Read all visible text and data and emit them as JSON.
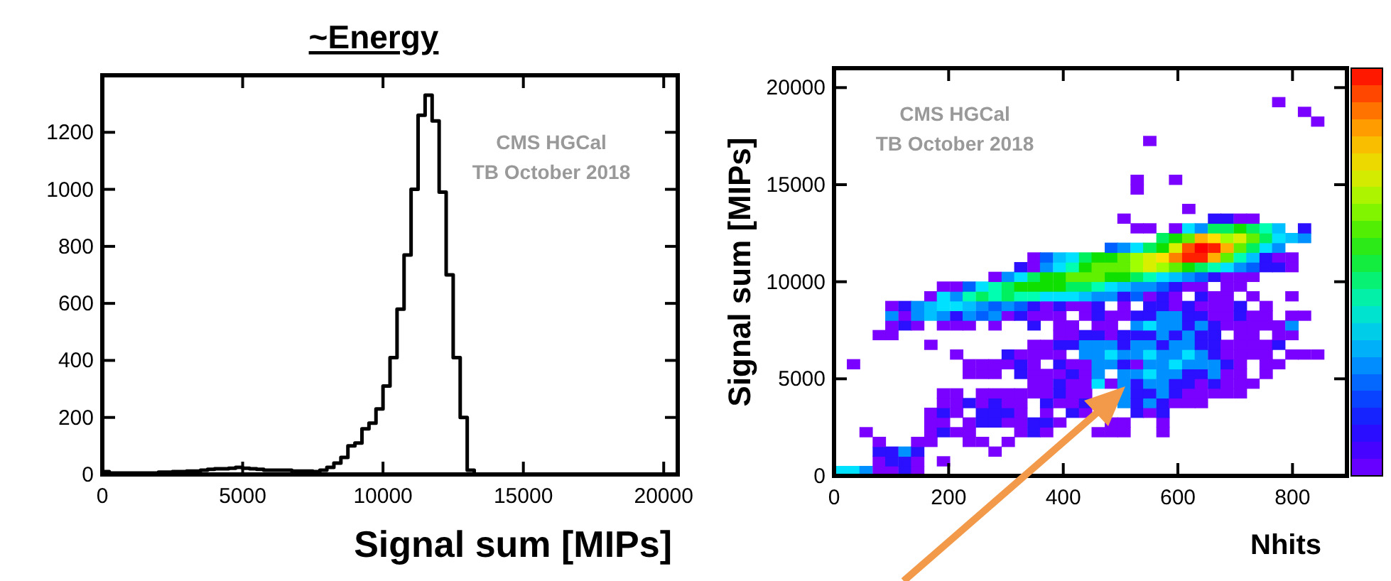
{
  "chart_data": [
    {
      "type": "histogram",
      "title": "~Energy",
      "xlabel": "Signal sum [MIPs]",
      "annotations": [
        "CMS HGCal",
        "TB October 2018"
      ],
      "color": "#000000",
      "bins": [
        0,
        250,
        500,
        750,
        1000,
        1250,
        1500,
        1750,
        2000,
        2250,
        2500,
        2750,
        3000,
        3250,
        3500,
        3750,
        4000,
        4250,
        4500,
        4750,
        5000,
        5250,
        5500,
        5750,
        6000,
        6250,
        6500,
        6750,
        7000,
        7250,
        7500,
        7750,
        8000,
        8250,
        8500,
        8750,
        9000,
        9250,
        9500,
        9750,
        10000,
        10250,
        10500,
        10750,
        11000,
        11250,
        11500,
        11750,
        12000,
        12250,
        12500,
        12750,
        13000,
        13250,
        13500,
        13750,
        14000,
        14250,
        14500,
        14750,
        15000,
        15250,
        15500,
        15750,
        16000,
        16250,
        16500,
        16750,
        17000,
        17250,
        17500,
        17750,
        18000,
        18250,
        18500,
        18750,
        19000,
        19250,
        19500,
        19750,
        20000,
        20250,
        20500
      ],
      "values": [
        10,
        5,
        5,
        5,
        5,
        5,
        5,
        5,
        8,
        8,
        10,
        10,
        12,
        12,
        15,
        18,
        20,
        20,
        22,
        25,
        22,
        20,
        18,
        15,
        15,
        15,
        15,
        12,
        12,
        12,
        10,
        15,
        25,
        40,
        60,
        100,
        110,
        160,
        180,
        230,
        310,
        410,
        580,
        770,
        1000,
        1260,
        1330,
        1240,
        990,
        700,
        410,
        200,
        15,
        0,
        0,
        0,
        0,
        0,
        0,
        0,
        0,
        0,
        0,
        0,
        0,
        0,
        0,
        0,
        0,
        0,
        0,
        0,
        0,
        0,
        0,
        0,
        0,
        0,
        0,
        0,
        0,
        0
      ],
      "xlim": [
        0,
        20500
      ],
      "ylim": [
        0,
        1400
      ],
      "xticks": [
        0,
        5000,
        10000,
        15000,
        20000
      ],
      "yticks": [
        0,
        200,
        400,
        600,
        800,
        1000,
        1200
      ]
    },
    {
      "type": "scatter",
      "marker": "square",
      "xlabel": "Nhits",
      "ylabel": "Signal sum [MIPs]",
      "annotations": [
        "CMS HGCal",
        "TB October 2018"
      ],
      "xlim": [
        0,
        895
      ],
      "ylim": [
        0,
        21000
      ],
      "xticks": [
        0,
        200,
        400,
        600,
        800
      ],
      "yticks": [
        0,
        5000,
        10000,
        15000,
        20000
      ],
      "series": [
        {
          "x": [
            11,
            34,
            56,
            79,
            101,
            124,
            146
          ],
          "values": [
            250,
            250,
            250,
            250,
            250,
            250,
            250
          ],
          "colors": [
            "#00e0ff",
            "#00e0ff",
            "#0090ff",
            "#7a00ff",
            "#7a00ff",
            "#2a10ff",
            "#7a00ff"
          ]
        },
        {
          "x": [
            79,
            101,
            124,
            146,
            191
          ],
          "values": [
            750,
            750,
            750,
            750,
            750
          ],
          "colors": [
            "#7a00ff",
            "#2a10ff",
            "#2a10ff",
            "#7a00ff",
            "#7a00ff"
          ]
        },
        {
          "x": [
            79,
            101,
            124,
            146,
            281
          ],
          "values": [
            1250,
            1250,
            1250,
            1250,
            1250
          ],
          "colors": [
            "#2a10ff",
            "#2a10ff",
            "#0090ff",
            "#2a10ff",
            "#7a00ff"
          ]
        },
        {
          "x": [
            79,
            146,
            169,
            236,
            259,
            304
          ],
          "values": [
            1750,
            1750,
            1750,
            1750,
            1750,
            1750
          ],
          "color": "#7a00ff"
        },
        {
          "x": [
            56,
            169,
            191,
            214,
            236,
            326,
            349,
            371,
            461,
            484,
            506,
            574
          ],
          "values": [
            2250,
            2250,
            2250,
            2250,
            2250,
            2250,
            2250,
            2250,
            2250,
            2250,
            2250,
            2250
          ],
          "colors": [
            "#7a00ff",
            "#7a00ff",
            "#2a10ff",
            "#7a00ff",
            "#7a00ff",
            "#7a00ff",
            "#2a10ff",
            "#7a00ff",
            "#7a00ff",
            "#7a00ff",
            "#7a00ff",
            "#7a00ff"
          ]
        },
        {
          "x": [
            169,
            191,
            236,
            259,
            281,
            304,
            326,
            349,
            371,
            394,
            484,
            506,
            574
          ],
          "values": [
            2750,
            2750,
            2750,
            2750,
            2750,
            2750,
            2750,
            2750,
            2750,
            2750,
            2750,
            2750,
            2750
          ],
          "colors": [
            "#7a00ff",
            "#7a00ff",
            "#7a00ff",
            "#2a10ff",
            "#2a10ff",
            "#7a00ff",
            "#7a00ff",
            "#2a10ff",
            "#2a10ff",
            "#7a00ff",
            "#7a00ff",
            "#7a00ff",
            "#7a00ff"
          ]
        },
        {
          "x": [
            169,
            191,
            214,
            259,
            281,
            304,
            326,
            371,
            416,
            439,
            529,
            551,
            574
          ],
          "values": [
            3250,
            3250,
            3250,
            3250,
            3250,
            3250,
            3250,
            3250,
            3250,
            3250,
            3250,
            3250,
            3250
          ],
          "colors": [
            "#7a00ff",
            "#2a10ff",
            "#7a00ff",
            "#2a10ff",
            "#2a10ff",
            "#2a10ff",
            "#7a00ff",
            "#7a00ff",
            "#2a10ff",
            "#7a00ff",
            "#2a10ff",
            "#7a00ff",
            "#2a10ff"
          ]
        },
        {
          "x": [
            191,
            214,
            236,
            259,
            281,
            304,
            326,
            371,
            394,
            416,
            439,
            506,
            529,
            551,
            574,
            596,
            619,
            641
          ],
          "values": [
            3750,
            3750,
            3750,
            3750,
            3750,
            3750,
            3750,
            3750,
            3750,
            3750,
            3750,
            3750,
            3750,
            3750,
            3750,
            3750,
            3750,
            3750
          ],
          "colors": [
            "#7a00ff",
            "#7a00ff",
            "#2a10ff",
            "#7a00ff",
            "#2a10ff",
            "#7a00ff",
            "#7a00ff",
            "#2a10ff",
            "#7a00ff",
            "#7a00ff",
            "#2a10ff",
            "#0090ff",
            "#2a10ff",
            "#0090ff",
            "#2a10ff",
            "#7a00ff",
            "#7a00ff",
            "#7a00ff"
          ]
        },
        {
          "x": [
            191,
            214,
            259,
            281,
            304,
            326,
            349,
            371,
            394,
            416,
            439,
            506,
            529,
            551,
            574,
            596,
            619,
            641,
            664,
            686,
            709
          ],
          "values": [
            4250,
            4250,
            4250,
            4250,
            4250,
            4250,
            4250,
            4250,
            4250,
            4250,
            4250,
            4250,
            4250,
            4250,
            4250,
            4250,
            4250,
            4250,
            4250,
            4250,
            4250
          ],
          "colors": [
            "#7a00ff",
            "#7a00ff",
            "#7a00ff",
            "#7a00ff",
            "#7a00ff",
            "#7a00ff",
            "#7a00ff",
            "#7a00ff",
            "#2a10ff",
            "#7a00ff",
            "#7a00ff",
            "#0090ff",
            "#2a10ff",
            "#2a10ff",
            "#0090ff",
            "#2a10ff",
            "#7a00ff",
            "#7a00ff",
            "#7a00ff",
            "#7a00ff",
            "#7a00ff"
          ]
        },
        {
          "x": [
            349,
            371,
            394,
            416,
            439,
            461,
            484,
            506,
            529,
            551,
            574,
            596,
            619,
            641,
            664,
            686,
            709,
            731
          ],
          "values": [
            4750,
            4750,
            4750,
            4750,
            4750,
            4750,
            4750,
            4750,
            4750,
            4750,
            4750,
            4750,
            4750,
            4750,
            4750,
            4750,
            4750,
            4750
          ],
          "colors": [
            "#7a00ff",
            "#7a00ff",
            "#2a10ff",
            "#7a00ff",
            "#7a00ff",
            "#00e0ff",
            "#7a00ff",
            "#0090ff",
            "#2a10ff",
            "#0090ff",
            "#0090ff",
            "#2a10ff",
            "#2a10ff",
            "#7a00ff",
            "#2a10ff",
            "#7a00ff",
            "#7a00ff",
            "#7a00ff"
          ]
        },
        {
          "x": [
            236,
            259,
            281,
            326,
            349,
            371,
            394,
            416,
            439,
            461,
            506,
            529,
            551,
            574,
            596,
            619,
            641,
            664,
            686,
            709,
            754
          ],
          "values": [
            5250,
            5250,
            5250,
            5250,
            5250,
            5250,
            5250,
            5250,
            5250,
            5250,
            5250,
            5250,
            5250,
            5250,
            5250,
            5250,
            5250,
            5250,
            5250,
            5250,
            5250
          ],
          "colors": [
            "#7a00ff",
            "#7a00ff",
            "#7a00ff",
            "#2a10ff",
            "#7a00ff",
            "#7a00ff",
            "#7a00ff",
            "#2a10ff",
            "#7a00ff",
            "#0090ff",
            "#0090ff",
            "#0090ff",
            "#00e0ff",
            "#0090ff",
            "#0090ff",
            "#2a10ff",
            "#2a10ff",
            "#0090ff",
            "#7a00ff",
            "#7a00ff",
            "#7a00ff"
          ]
        },
        {
          "x": [
            34,
            236,
            259,
            281,
            304,
            326,
            349,
            394,
            416,
            439,
            461,
            484,
            506,
            529,
            551,
            574,
            596,
            619,
            641,
            664,
            686,
            709,
            754,
            776
          ],
          "values": [
            5750,
            5750,
            5750,
            5750,
            5750,
            5750,
            5750,
            5750,
            5750,
            5750,
            5750,
            5750,
            5750,
            5750,
            5750,
            5750,
            5750,
            5750,
            5750,
            5750,
            5750,
            5750,
            5750,
            5750
          ],
          "colors": [
            "#7a00ff",
            "#7a00ff",
            "#7a00ff",
            "#7a00ff",
            "#7a00ff",
            "#2a10ff",
            "#7a00ff",
            "#2a10ff",
            "#7a00ff",
            "#7a00ff",
            "#0090ff",
            "#0090ff",
            "#2a10ff",
            "#7a00ff",
            "#0090ff",
            "#0090ff",
            "#00e0ff",
            "#0090ff",
            "#0090ff",
            "#0090ff",
            "#2a10ff",
            "#7a00ff",
            "#7a00ff",
            "#7a00ff"
          ]
        },
        {
          "x": [
            214,
            304,
            326,
            349,
            371,
            394,
            439,
            461,
            484,
            506,
            529,
            551,
            574,
            596,
            619,
            641,
            664,
            686,
            709,
            731,
            754,
            799,
            821,
            844
          ],
          "values": [
            6250,
            6250,
            6250,
            6250,
            6250,
            6250,
            6250,
            6250,
            6250,
            6250,
            6250,
            6250,
            6250,
            6250,
            6250,
            6250,
            6250,
            6250,
            6250,
            6250,
            6250,
            6250,
            6250,
            6250
          ],
          "colors": [
            "#7a00ff",
            "#2a10ff",
            "#7a00ff",
            "#7a00ff",
            "#7a00ff",
            "#7a00ff",
            "#0090ff",
            "#0090ff",
            "#00e0ff",
            "#0090ff",
            "#0090ff",
            "#00e0ff",
            "#0090ff",
            "#0090ff",
            "#00e0ff",
            "#0090ff",
            "#2a10ff",
            "#7a00ff",
            "#7a00ff",
            "#7a00ff",
            "#7a00ff",
            "#7a00ff",
            "#7a00ff",
            "#7a00ff"
          ]
        },
        {
          "x": [
            169,
            349,
            371,
            394,
            416,
            439,
            461,
            484,
            506,
            529,
            551,
            574,
            596,
            619,
            641,
            664,
            686,
            709,
            731,
            754,
            776
          ],
          "values": [
            6750,
            6750,
            6750,
            6750,
            6750,
            6750,
            6750,
            6750,
            6750,
            6750,
            6750,
            6750,
            6750,
            6750,
            6750,
            6750,
            6750,
            6750,
            6750,
            6750,
            6750
          ],
          "colors": [
            "#7a00ff",
            "#7a00ff",
            "#7a00ff",
            "#2a10ff",
            "#2a10ff",
            "#0090ff",
            "#0090ff",
            "#0090ff",
            "#2a10ff",
            "#0090ff",
            "#0090ff",
            "#2a10ff",
            "#0090ff",
            "#0090ff",
            "#2a10ff",
            "#2a10ff",
            "#7a00ff",
            "#7a00ff",
            "#7a00ff",
            "#7a00ff",
            "#2a10ff"
          ]
        },
        {
          "x": [
            79,
            101,
            394,
            416,
            439,
            461,
            484,
            506,
            529,
            551,
            574,
            596,
            619,
            641,
            664,
            709,
            731,
            776,
            799
          ],
          "values": [
            7250,
            7250,
            7250,
            7250,
            7250,
            7250,
            7250,
            7250,
            7250,
            7250,
            7250,
            7250,
            7250,
            7250,
            7250,
            7250,
            7250,
            7250,
            7250
          ],
          "colors": [
            "#7a00ff",
            "#7a00ff",
            "#7a00ff",
            "#7a00ff",
            "#2a10ff",
            "#2a10ff",
            "#7a00ff",
            "#2a10ff",
            "#2a10ff",
            "#2a10ff",
            "#0090ff",
            "#2a10ff",
            "#0090ff",
            "#2a10ff",
            "#2a10ff",
            "#7a00ff",
            "#7a00ff",
            "#7a00ff",
            "#7a00ff"
          ]
        },
        {
          "x": [
            101,
            124,
            146,
            191,
            214,
            236,
            281,
            349,
            394,
            416,
            461,
            484,
            529,
            551,
            574,
            596,
            619,
            641,
            664,
            686,
            709,
            731,
            754,
            776,
            799
          ],
          "values": [
            7750,
            7750,
            7750,
            7750,
            7750,
            7750,
            7750,
            7750,
            7750,
            7750,
            7750,
            7750,
            7750,
            7750,
            7750,
            7750,
            7750,
            7750,
            7750,
            7750,
            7750,
            7750,
            7750,
            7750,
            7750
          ],
          "colors": [
            "#7a00ff",
            "#2a10ff",
            "#7a00ff",
            "#7a00ff",
            "#7a00ff",
            "#7a00ff",
            "#7a00ff",
            "#2a10ff",
            "#7a00ff",
            "#7a00ff",
            "#7a00ff",
            "#7a00ff",
            "#0090ff",
            "#00e0ff",
            "#0090ff",
            "#0090ff",
            "#2a10ff",
            "#0090ff",
            "#2a10ff",
            "#7a00ff",
            "#7a00ff",
            "#7a00ff",
            "#7a00ff",
            "#7a00ff",
            "#0090ff"
          ]
        },
        {
          "x": [
            101,
            124,
            146,
            169,
            191,
            214,
            236,
            259,
            281,
            304,
            326,
            349,
            371,
            394,
            439,
            461,
            484,
            506,
            529,
            551,
            574,
            596,
            619,
            641,
            664,
            686,
            709,
            731,
            754,
            799,
            821
          ],
          "values": [
            8250,
            8250,
            8250,
            8250,
            8250,
            8250,
            8250,
            8250,
            8250,
            8250,
            8250,
            8250,
            8250,
            8250,
            8250,
            8250,
            8250,
            8250,
            8250,
            8250,
            8250,
            8250,
            8250,
            8250,
            8250,
            8250,
            8250,
            8250,
            8250,
            8250,
            8250
          ],
          "colors": [
            "#0090ff",
            "#7a00ff",
            "#0090ff",
            "#00c0ff",
            "#0090ff",
            "#2a10ff",
            "#0090ff",
            "#0060ff",
            "#0090ff",
            "#7a00ff",
            "#2a10ff",
            "#7a00ff",
            "#7a00ff",
            "#7a00ff",
            "#7a00ff",
            "#2a10ff",
            "#7a00ff",
            "#7a00ff",
            "#2a10ff",
            "#2a10ff",
            "#0090ff",
            "#0090ff",
            "#2a10ff",
            "#2a10ff",
            "#7a00ff",
            "#7a00ff",
            "#2a10ff",
            "#7a00ff",
            "#7a00ff",
            "#7a00ff",
            "#7a00ff"
          ]
        },
        {
          "x": [
            101,
            124,
            146,
            169,
            191,
            214,
            236,
            259,
            281,
            304,
            326,
            349,
            371,
            394,
            416,
            439,
            461,
            506,
            551,
            574,
            596,
            619,
            641,
            664,
            686,
            709,
            754
          ],
          "values": [
            8750,
            8750,
            8750,
            8750,
            8750,
            8750,
            8750,
            8750,
            8750,
            8750,
            8750,
            8750,
            8750,
            8750,
            8750,
            8750,
            8750,
            8750,
            8750,
            8750,
            8750,
            8750,
            8750,
            8750,
            8750,
            8750,
            8750
          ],
          "colors": [
            "#7a00ff",
            "#2a10ff",
            "#0090ff",
            "#00c0ff",
            "#00e0ff",
            "#00e0ff",
            "#00c0ff",
            "#0090ff",
            "#0060ff",
            "#0090ff",
            "#0060ff",
            "#2a10ff",
            "#7a00ff",
            "#2a10ff",
            "#7a00ff",
            "#7a00ff",
            "#2a10ff",
            "#7a00ff",
            "#2a10ff",
            "#2a10ff",
            "#7a00ff",
            "#2a10ff",
            "#7a00ff",
            "#7a00ff",
            "#7a00ff",
            "#2a10ff",
            "#7a00ff"
          ]
        },
        {
          "x": [
            169,
            191,
            214,
            236,
            259,
            281,
            304,
            326,
            349,
            371,
            394,
            416,
            439,
            461,
            484,
            506,
            529,
            551,
            574,
            596,
            641,
            664,
            686,
            731,
            799
          ],
          "values": [
            9250,
            9250,
            9250,
            9250,
            9250,
            9250,
            9250,
            9250,
            9250,
            9250,
            9250,
            9250,
            9250,
            9250,
            9250,
            9250,
            9250,
            9250,
            9250,
            9250,
            9250,
            9250,
            9250,
            9250,
            9250
          ],
          "colors": [
            "#7a00ff",
            "#00e0ff",
            "#0090ff",
            "#00ffb0",
            "#00f060",
            "#00ffb0",
            "#00f060",
            "#00ffb0",
            "#00ffb0",
            "#00e0ff",
            "#00e0ff",
            "#00e0ff",
            "#00c0ff",
            "#0090ff",
            "#0090ff",
            "#2a10ff",
            "#0060ff",
            "#7a00ff",
            "#2a10ff",
            "#7a00ff",
            "#2a10ff",
            "#7a00ff",
            "#7a00ff",
            "#7a00ff",
            "#7a00ff"
          ]
        },
        {
          "x": [
            191,
            214,
            236,
            259,
            281,
            304,
            326,
            349,
            371,
            394,
            416,
            439,
            461,
            484,
            506,
            529,
            551,
            574,
            596,
            619,
            641,
            686,
            709
          ],
          "values": [
            9750,
            9750,
            9750,
            9750,
            9750,
            9750,
            9750,
            9750,
            9750,
            9750,
            9750,
            9750,
            9750,
            9750,
            9750,
            9750,
            9750,
            9750,
            9750,
            9750,
            9750,
            9750,
            9750
          ],
          "colors": [
            "#7a00ff",
            "#7a00ff",
            "#0060ff",
            "#00e0ff",
            "#00ffb0",
            "#00f060",
            "#10e000",
            "#10e000",
            "#10e000",
            "#10e000",
            "#00f060",
            "#00f060",
            "#00ffb0",
            "#00e0ff",
            "#00c0ff",
            "#0090ff",
            "#0090ff",
            "#0060ff",
            "#2a10ff",
            "#7a00ff",
            "#7a00ff",
            "#7a00ff",
            "#7a00ff"
          ]
        },
        {
          "x": [
            281,
            304,
            326,
            349,
            371,
            394,
            416,
            439,
            461,
            484,
            506,
            529,
            551,
            574,
            596,
            619,
            641,
            664,
            686,
            709,
            731
          ],
          "values": [
            10250,
            10250,
            10250,
            10250,
            10250,
            10250,
            10250,
            10250,
            10250,
            10250,
            10250,
            10250,
            10250,
            10250,
            10250,
            10250,
            10250,
            10250,
            10250,
            10250,
            10250
          ],
          "colors": [
            "#7a00ff",
            "#0090ff",
            "#00e0ff",
            "#00f060",
            "#10e000",
            "#10e000",
            "#60f000",
            "#60f000",
            "#60f000",
            "#10e000",
            "#10e000",
            "#00f060",
            "#00ffb0",
            "#00e0ff",
            "#00c0ff",
            "#0090ff",
            "#0060ff",
            "#2a10ff",
            "#7a00ff",
            "#7a00ff",
            "#7a00ff"
          ]
        },
        {
          "x": [
            326,
            349,
            371,
            394,
            416,
            439,
            461,
            484,
            506,
            529,
            551,
            574,
            596,
            619,
            641,
            664,
            686,
            709,
            731,
            754,
            776,
            799
          ],
          "values": [
            10750,
            10750,
            10750,
            10750,
            10750,
            10750,
            10750,
            10750,
            10750,
            10750,
            10750,
            10750,
            10750,
            10750,
            10750,
            10750,
            10750,
            10750,
            10750,
            10750,
            10750,
            10750
          ],
          "colors": [
            "#2a10ff",
            "#7a00ff",
            "#0090ff",
            "#00e0ff",
            "#00ffb0",
            "#10e000",
            "#60f000",
            "#60f000",
            "#60f000",
            "#a0ff00",
            "#d8f000",
            "#a0ff00",
            "#60f000",
            "#10e000",
            "#00f060",
            "#00ffb0",
            "#00e0ff",
            "#0090ff",
            "#0060ff",
            "#2a10ff",
            "#2a10ff",
            "#7a00ff"
          ]
        },
        {
          "x": [
            349,
            371,
            394,
            416,
            439,
            461,
            484,
            506,
            529,
            551,
            574,
            596,
            619,
            641,
            664,
            686,
            709,
            731,
            754,
            776,
            799
          ],
          "values": [
            11250,
            11250,
            11250,
            11250,
            11250,
            11250,
            11250,
            11250,
            11250,
            11250,
            11250,
            11250,
            11250,
            11250,
            11250,
            11250,
            11250,
            11250,
            11250,
            11250,
            11250
          ],
          "colors": [
            "#7a00ff",
            "#0060ff",
            "#00c0ff",
            "#00e0ff",
            "#00f060",
            "#10e000",
            "#10e000",
            "#60f000",
            "#a0ff00",
            "#d8f000",
            "#ffe000",
            "#ff8000",
            "#ff2000",
            "#ff2000",
            "#ffb000",
            "#60f000",
            "#00ffb0",
            "#00c0ff",
            "#2a10ff",
            "#7a00ff",
            "#7a00ff"
          ]
        },
        {
          "x": [
            484,
            506,
            529,
            551,
            574,
            596,
            619,
            641,
            664,
            686,
            709,
            731,
            754,
            776
          ],
          "values": [
            11750,
            11750,
            11750,
            11750,
            11750,
            11750,
            11750,
            11750,
            11750,
            11750,
            11750,
            11750,
            11750,
            11750
          ],
          "colors": [
            "#0060ff",
            "#0090ff",
            "#00e0ff",
            "#00f060",
            "#10e000",
            "#d8f000",
            "#ff5000",
            "#ff0000",
            "#ff2000",
            "#ffb000",
            "#60f000",
            "#00f060",
            "#00e0ff",
            "#0090ff"
          ]
        },
        {
          "x": [
            574,
            596,
            619,
            641,
            664,
            686,
            709,
            731,
            754,
            776,
            799,
            821
          ],
          "values": [
            12250,
            12250,
            12250,
            12250,
            12250,
            12250,
            12250,
            12250,
            12250,
            12250,
            12250,
            12250
          ],
          "colors": [
            "#00f060",
            "#10e000",
            "#60f000",
            "#ffb000",
            "#ffe000",
            "#a0ff00",
            "#d8f000",
            "#60f000",
            "#00f060",
            "#00e0ff",
            "#00c0ff",
            "#0090ff"
          ]
        },
        {
          "x": [
            529,
            551,
            596,
            619,
            641,
            664,
            686,
            709,
            731,
            754,
            776,
            821
          ],
          "values": [
            12750,
            12750,
            12750,
            12750,
            12750,
            12750,
            12750,
            12750,
            12750,
            12750,
            12750,
            12750
          ],
          "colors": [
            "#7a00ff",
            "#7a00ff",
            "#7a00ff",
            "#00e0ff",
            "#0090ff",
            "#00f060",
            "#00f060",
            "#10e000",
            "#00f060",
            "#00ffb0",
            "#00c0ff",
            "#2a10ff"
          ]
        },
        {
          "x": [
            506,
            664,
            686,
            709,
            731
          ],
          "values": [
            13250,
            13250,
            13250,
            13250,
            13250
          ],
          "colors": [
            "#7a00ff",
            "#2a10ff",
            "#2a10ff",
            "#7a00ff",
            "#7a00ff"
          ]
        },
        {
          "x": [
            619,
            529,
            529,
            596,
            551,
            844,
            821,
            776
          ],
          "values": [
            13750,
            14750,
            15250,
            15250,
            17250,
            18250,
            18750,
            19250
          ],
          "color": "#7a00ff"
        }
      ]
    }
  ]
}
